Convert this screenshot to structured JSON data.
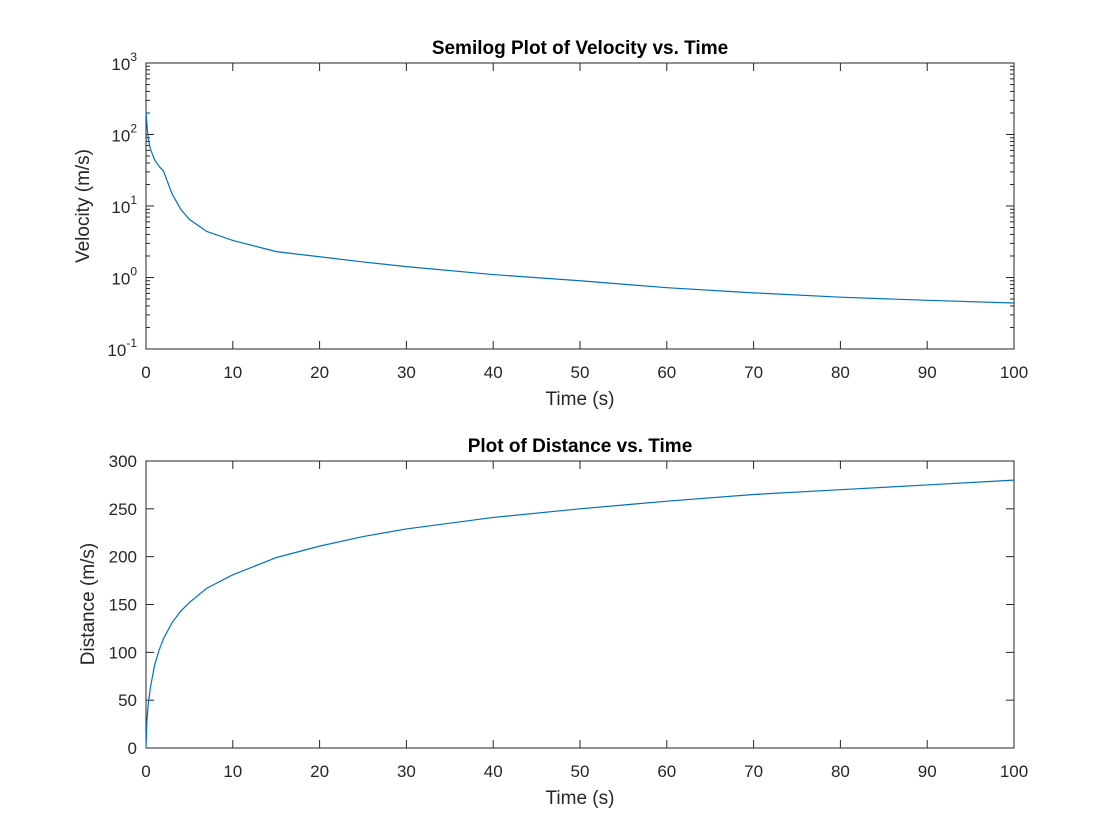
{
  "chart_data": [
    {
      "type": "line",
      "title": "Semilog Plot of Velocity vs. Time",
      "xlabel": "Time (s)",
      "ylabel": "Velocity (m/s)",
      "yscale": "log",
      "xlim": [
        0,
        100
      ],
      "ylim": [
        0.1,
        1000
      ],
      "grid": false,
      "line_color": "#0072bd",
      "xticks": [
        "0",
        "10",
        "20",
        "30",
        "40",
        "50",
        "60",
        "70",
        "80",
        "90",
        "100"
      ],
      "yticks": [
        {
          "value": 0.1,
          "base": "10",
          "exp": "-1"
        },
        {
          "value": 1,
          "base": "10",
          "exp": "0"
        },
        {
          "value": 10,
          "base": "10",
          "exp": "1"
        },
        {
          "value": 100,
          "base": "10",
          "exp": "2"
        },
        {
          "value": 1000,
          "base": "10",
          "exp": "3"
        }
      ],
      "series": [
        {
          "x": [
            0,
            0.1,
            0.25,
            0.5,
            1,
            1.5,
            2,
            3,
            4,
            5,
            7,
            10,
            15,
            20,
            25,
            30,
            40,
            50,
            60,
            70,
            80,
            90,
            100
          ],
          "y": [
            220,
            140,
            88,
            63,
            44,
            36,
            31,
            14.8,
            9,
            6.5,
            4.4,
            3.3,
            2.3,
            1.95,
            1.65,
            1.42,
            1.1,
            0.9,
            0.72,
            0.61,
            0.53,
            0.48,
            0.44
          ]
        }
      ]
    },
    {
      "type": "line",
      "title": "Plot of Distance vs. Time",
      "xlabel": "Time (s)",
      "ylabel": "Distance (m/s)",
      "xlim": [
        0,
        100
      ],
      "ylim": [
        0,
        300
      ],
      "grid": false,
      "line_color": "#0072bd",
      "xticks": [
        "0",
        "10",
        "20",
        "30",
        "40",
        "50",
        "60",
        "70",
        "80",
        "90",
        "100"
      ],
      "yticks": [
        "0",
        "50",
        "100",
        "150",
        "200",
        "250",
        "300"
      ],
      "series": [
        {
          "x": [
            0,
            0.1,
            0.25,
            0.5,
            1,
            1.5,
            2,
            3,
            4,
            5,
            7,
            10,
            15,
            20,
            25,
            30,
            40,
            50,
            60,
            70,
            80,
            90,
            100
          ],
          "y": [
            0,
            28,
            45,
            63,
            87,
            102,
            114,
            131,
            143,
            152,
            167,
            181,
            199,
            211,
            221,
            229,
            241,
            250,
            258,
            265,
            270,
            275,
            280
          ]
        }
      ]
    }
  ]
}
